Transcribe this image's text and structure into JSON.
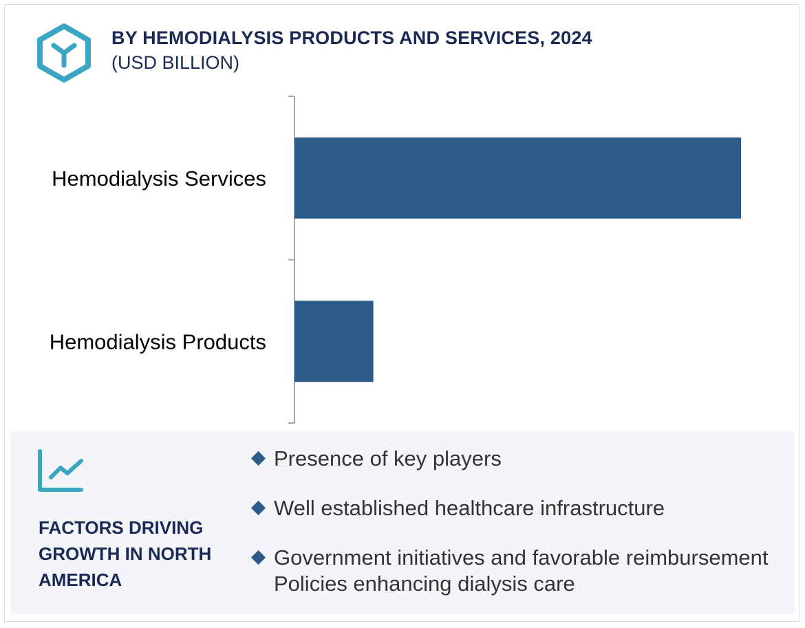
{
  "header": {
    "title": "BY HEMODIALYSIS PRODUCTS AND SERVICES, 2024",
    "subtitle": "(USD BILLION)",
    "logo_icon": "hexagon-y-logo-icon"
  },
  "chart_data": {
    "type": "bar",
    "orientation": "horizontal",
    "title": "BY HEMODIALYSIS PRODUCTS AND SERVICES, 2024",
    "subtitle": "(USD BILLION)",
    "categories": [
      "Hemodialysis Services",
      "Hemodialysis Products"
    ],
    "values": [
      30.0,
      5.3
    ],
    "xlim": [
      0,
      30.0
    ],
    "xlabel": "",
    "ylabel": "",
    "grid": false,
    "color": "#2d5c8a"
  },
  "factors": {
    "icon": "line-chart-icon",
    "heading": "FACTORS DRIVING GROWTH IN NORTH AMERICA",
    "items": [
      "Presence of key players",
      "Well established healthcare infrastructure",
      "Government initiatives and favorable reimbursement Policies enhancing dialysis care"
    ]
  },
  "colors": {
    "accent": "#3aa6c4",
    "navy": "#1b2a55",
    "bar": "#2d5c8a",
    "panel": "#f3f5f9"
  }
}
